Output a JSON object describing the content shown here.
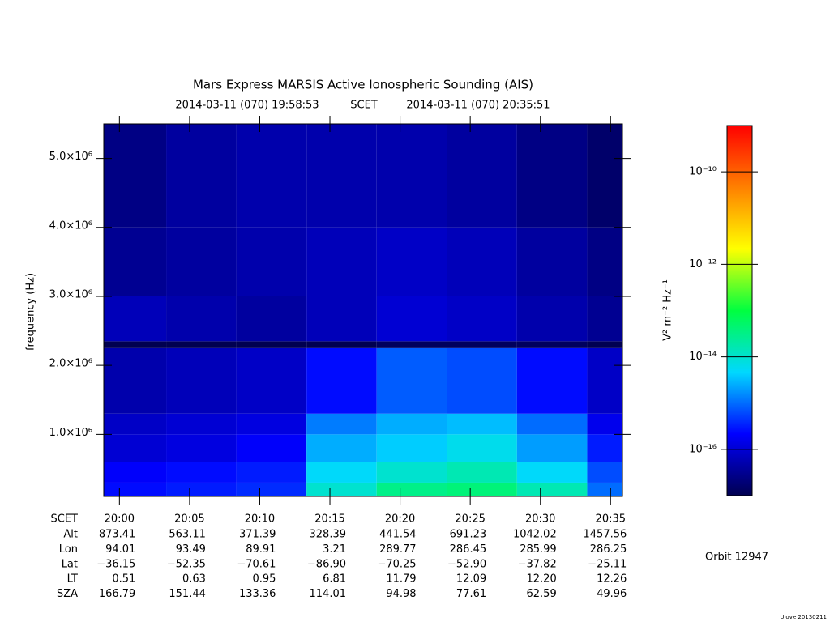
{
  "chart_data": {
    "type": "heatmap",
    "title": "Mars Express MARSIS Active Ionospheric Sounding (AIS)",
    "start_time": "2014-03-11 (070) 19:58:53",
    "time_system": "SCET",
    "end_time": "2014-03-11 (070) 20:35:51",
    "y_label": "frequency (Hz)",
    "colorbar_label": "V² m⁻² Hz⁻¹",
    "orbit": "Orbit 12947",
    "footer": "Ulove 20130211",
    "xlim": [
      71933,
      74151
    ],
    "xticks": [
      {
        "value": 72000,
        "label": "20:00"
      },
      {
        "value": 72300,
        "label": "20:05"
      },
      {
        "value": 72600,
        "label": "20:10"
      },
      {
        "value": 72900,
        "label": "20:15"
      },
      {
        "value": 73200,
        "label": "20:20"
      },
      {
        "value": 73500,
        "label": "20:25"
      },
      {
        "value": 73800,
        "label": "20:30"
      },
      {
        "value": 74100,
        "label": "20:35"
      }
    ],
    "ylim": [
      100000,
      5500000
    ],
    "yticks": [
      {
        "value": 1000000,
        "label": "1.0×10⁶"
      },
      {
        "value": 2000000,
        "label": "2.0×10⁶"
      },
      {
        "value": 3000000,
        "label": "3.0×10⁶"
      },
      {
        "value": 4000000,
        "label": "4.0×10⁶"
      },
      {
        "value": 5000000,
        "label": "5.0×10⁶"
      }
    ],
    "zlim": [
      -17,
      -9
    ],
    "zticks": [
      {
        "value": -10,
        "label": "10⁻¹⁰"
      },
      {
        "value": -12,
        "label": "10⁻¹²"
      },
      {
        "value": -14,
        "label": "10⁻¹⁴"
      },
      {
        "value": -16,
        "label": "10⁻¹⁶"
      }
    ],
    "colorscale": [
      "#000050",
      "#0000ff",
      "#00d8ff",
      "#00ff40",
      "#ffff00",
      "#ff8000",
      "#ff0000"
    ],
    "time_edges": [
      71933,
      72200,
      72500,
      72800,
      73100,
      73400,
      73700,
      74000,
      74151
    ],
    "freq_edges": [
      100000,
      300000,
      600000,
      1000000,
      1300000,
      2250000,
      2350000,
      3000000,
      4000000,
      5500000
    ],
    "z": [
      [
        -15.6,
        -15.5,
        -15.4,
        -14.0,
        -13.5,
        -13.4,
        -13.8,
        -15.0
      ],
      [
        -15.7,
        -15.6,
        -15.5,
        -14.3,
        -14.0,
        -13.8,
        -14.3,
        -15.2
      ],
      [
        -16.0,
        -15.9,
        -15.7,
        -14.6,
        -14.4,
        -14.2,
        -14.7,
        -15.5
      ],
      [
        -16.1,
        -16.0,
        -15.9,
        -14.9,
        -14.6,
        -14.5,
        -15.0,
        -15.8
      ],
      [
        -16.3,
        -16.2,
        -16.1,
        -15.6,
        -15.1,
        -15.2,
        -15.6,
        -16.1
      ],
      [
        -17.0,
        -17.0,
        -17.0,
        -17.0,
        -16.9,
        -16.9,
        -16.9,
        -17.0
      ],
      [
        -16.2,
        -16.3,
        -16.4,
        -16.2,
        -16.0,
        -16.1,
        -16.3,
        -16.5
      ],
      [
        -16.5,
        -16.4,
        -16.3,
        -16.2,
        -16.1,
        -16.2,
        -16.4,
        -16.6
      ],
      [
        -16.6,
        -16.4,
        -16.3,
        -16.3,
        -16.3,
        -16.4,
        -16.6,
        -16.8
      ]
    ],
    "ephemeris": {
      "labels": [
        "Alt",
        "Lon",
        "Lat",
        "LT",
        "SZA"
      ],
      "rows": [
        [
          "873.41",
          "563.11",
          "371.39",
          "328.39",
          "441.54",
          "691.23",
          "1042.02",
          "1457.56"
        ],
        [
          "94.01",
          "93.49",
          "89.91",
          "3.21",
          "289.77",
          "286.45",
          "285.99",
          "286.25"
        ],
        [
          "−36.15",
          "−52.35",
          "−70.61",
          "−86.90",
          "−70.25",
          "−52.90",
          "−37.82",
          "−25.11"
        ],
        [
          "0.51",
          "0.63",
          "0.95",
          "6.81",
          "11.79",
          "12.09",
          "12.20",
          "12.26"
        ],
        [
          "166.79",
          "151.44",
          "133.36",
          "114.01",
          "94.98",
          "77.61",
          "62.59",
          "49.96"
        ]
      ]
    }
  }
}
